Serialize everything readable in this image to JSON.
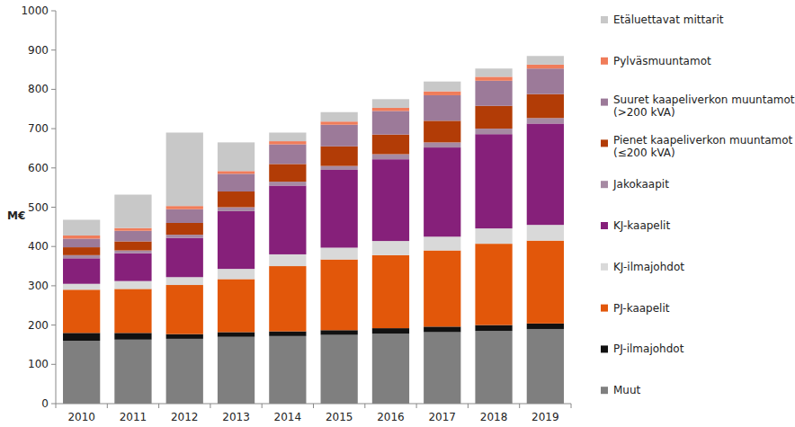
{
  "chart_data": {
    "type": "bar",
    "stacked": true,
    "grid": false,
    "legend": "right",
    "y_label": "M€",
    "categories": [
      "2010",
      "2011",
      "2012",
      "2013",
      "2014",
      "2015",
      "2016",
      "2017",
      "2018",
      "2019"
    ],
    "ylim": [
      0,
      1000
    ],
    "yticks": [
      0,
      100,
      200,
      300,
      400,
      500,
      600,
      700,
      800,
      900,
      1000
    ],
    "series": [
      {
        "name": "Muut",
        "color": "#7f7f7f",
        "values": [
          160,
          163,
          165,
          170,
          172,
          175,
          178,
          182,
          185,
          190
        ]
      },
      {
        "name": "PJ-ilmajohdot",
        "color": "#111111",
        "values": [
          20,
          17,
          12,
          12,
          12,
          12,
          14,
          14,
          15,
          14
        ]
      },
      {
        "name": "PJ-kaapelit",
        "color": "#e2570a",
        "values": [
          110,
          112,
          125,
          135,
          166,
          180,
          186,
          194,
          207,
          211
        ]
      },
      {
        "name": "KJ-ilmajohdot",
        "color": "#d9d9d9",
        "values": [
          15,
          20,
          20,
          26,
          30,
          30,
          36,
          35,
          39,
          40
        ]
      },
      {
        "name": "KJ-kaapelit",
        "color": "#86207a",
        "values": [
          65,
          71,
          100,
          147,
          175,
          198,
          208,
          227,
          240,
          258
        ]
      },
      {
        "name": "Jakokaapit",
        "color": "#a68aa3",
        "values": [
          8,
          7,
          8,
          10,
          10,
          10,
          13,
          13,
          14,
          14
        ]
      },
      {
        "name": "Pienet kaapeliverkon muuntamot (≤200 kVA)",
        "color": "#b23c06",
        "values": [
          20,
          23,
          30,
          40,
          45,
          50,
          50,
          55,
          58,
          61
        ]
      },
      {
        "name": "Suuret kaapeliverkon muuntamot (>200 kVA)",
        "color": "#9c7a99",
        "values": [
          22,
          27,
          35,
          45,
          50,
          55,
          60,
          65,
          64,
          65
        ]
      },
      {
        "name": "Pylväsmuuntamot",
        "color": "#f07c5a",
        "values": [
          8,
          7,
          8,
          7,
          8,
          8,
          8,
          10,
          10,
          10
        ]
      },
      {
        "name": "Etäluettavat mittarit",
        "color": "#c8c8c8",
        "values": [
          40,
          85,
          187,
          73,
          22,
          24,
          22,
          25,
          21,
          22
        ]
      }
    ]
  }
}
